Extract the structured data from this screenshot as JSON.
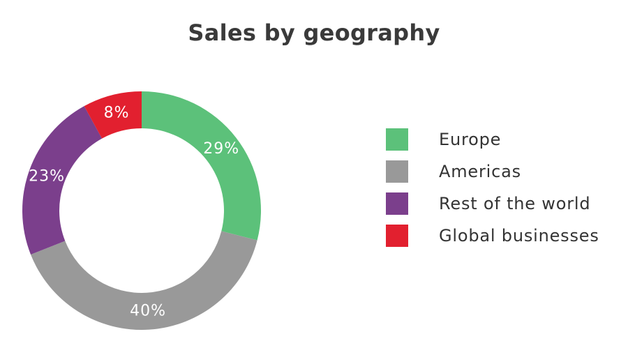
{
  "chart_data": {
    "type": "pie",
    "title": "Sales by geography",
    "donut": true,
    "legend_position": "right",
    "slices": [
      {
        "name": "Europe",
        "value": 29,
        "label": "29%",
        "color": "#5cc17a"
      },
      {
        "name": "Americas",
        "value": 40,
        "label": "40%",
        "color": "#999999"
      },
      {
        "name": "Rest of the world",
        "value": 23,
        "label": "23%",
        "color": "#7b3f8c"
      },
      {
        "name": "Global businesses",
        "value": 8,
        "label": "8%",
        "color": "#e2202f"
      }
    ]
  }
}
